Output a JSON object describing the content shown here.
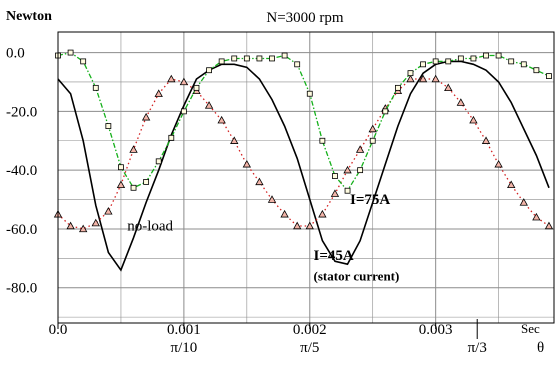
{
  "chart_data": {
    "type": "line",
    "title": "N=3000 rpm",
    "ylabel": "Newton",
    "xlabel_unit": "Sec",
    "angle_label": "θ",
    "xlim": [
      0.0,
      0.00394
    ],
    "ylim": [
      -92,
      7
    ],
    "grid": true,
    "x_ticks": [
      {
        "value": 0.0,
        "label": "0.0"
      },
      {
        "value": 0.001,
        "label": "0.001"
      },
      {
        "value": 0.002,
        "label": "0.002"
      },
      {
        "value": 0.003,
        "label": "0.003"
      }
    ],
    "angle_ticks": [
      {
        "value": 0.001,
        "label": "π/10"
      },
      {
        "value": 0.002,
        "label": "π/5"
      },
      {
        "value": 0.00333,
        "label": "π/3"
      }
    ],
    "y_ticks": [
      {
        "value": 0,
        "label": "0.0"
      },
      {
        "value": -20,
        "label": "-20.0"
      },
      {
        "value": -40,
        "label": "-40.0"
      },
      {
        "value": -60,
        "label": "-60.0"
      },
      {
        "value": -80,
        "label": "-80.0"
      }
    ],
    "series": [
      {
        "name": "no-load",
        "color": "#000000",
        "style": "solid",
        "marker": "none",
        "x": [
          0.0,
          0.0001,
          0.0002,
          0.0003,
          0.0004,
          0.0005,
          0.0006,
          0.0007,
          0.0008,
          0.0009,
          0.001,
          0.0011,
          0.0012,
          0.0013,
          0.0014,
          0.0015,
          0.0016,
          0.0017,
          0.0018,
          0.0019,
          0.002,
          0.0021,
          0.0022,
          0.0023,
          0.0024,
          0.0025,
          0.0026,
          0.0027,
          0.0028,
          0.0029,
          0.003,
          0.0031,
          0.0032,
          0.0033,
          0.0034,
          0.0035,
          0.0036,
          0.0037,
          0.0038,
          0.0039
        ],
        "y": [
          -9,
          -14,
          -30,
          -52,
          -68,
          -74,
          -63,
          -51,
          -40,
          -28,
          -18,
          -9,
          -6,
          -4,
          -4,
          -5,
          -9,
          -16,
          -25,
          -36,
          -50,
          -64,
          -71,
          -72,
          -64,
          -51,
          -38,
          -25,
          -14,
          -7,
          -4,
          -3,
          -3,
          -4,
          -6,
          -10,
          -17,
          -26,
          -35,
          -46
        ]
      },
      {
        "name": "I=75A",
        "color": "#d32020",
        "style": "dotted",
        "marker": "triangle",
        "x": [
          0.0,
          0.0001,
          0.0002,
          0.0003,
          0.0004,
          0.0005,
          0.0006,
          0.0007,
          0.0008,
          0.0009,
          0.001,
          0.0011,
          0.0012,
          0.0013,
          0.0014,
          0.0015,
          0.0016,
          0.0017,
          0.0018,
          0.0019,
          0.002,
          0.0021,
          0.0022,
          0.0023,
          0.0024,
          0.0025,
          0.0026,
          0.0027,
          0.0028,
          0.0029,
          0.003,
          0.0031,
          0.0032,
          0.0033,
          0.0034,
          0.0035,
          0.0036,
          0.0037,
          0.0038,
          0.0039
        ],
        "y": [
          -55,
          -59,
          -60,
          -58,
          -54,
          -45,
          -33,
          -22,
          -14,
          -9,
          -10,
          -13,
          -18,
          -23,
          -30,
          -38,
          -44,
          -50,
          -55,
          -59,
          -59,
          -55,
          -48,
          -40,
          -33,
          -26,
          -19,
          -13,
          -9,
          -9,
          -9,
          -12,
          -17,
          -23,
          -30,
          -38,
          -45,
          -51,
          -56,
          -59
        ]
      },
      {
        "name": "I=45A",
        "color": "#14b01a",
        "style": "dashdot",
        "marker": "square",
        "x": [
          0.0,
          0.0001,
          0.0002,
          0.0003,
          0.0004,
          0.0005,
          0.0006,
          0.0007,
          0.0008,
          0.0009,
          0.001,
          0.0011,
          0.0012,
          0.0013,
          0.0014,
          0.0015,
          0.0016,
          0.0017,
          0.0018,
          0.0019,
          0.002,
          0.0021,
          0.0022,
          0.0023,
          0.0024,
          0.0025,
          0.0026,
          0.0027,
          0.0028,
          0.0029,
          0.003,
          0.0031,
          0.0032,
          0.0033,
          0.0034,
          0.0035,
          0.0036,
          0.0037,
          0.0038,
          0.0039
        ],
        "y": [
          -1,
          0,
          -3,
          -12,
          -25,
          -39,
          -46,
          -44,
          -37,
          -29,
          -20,
          -12,
          -6,
          -3,
          -2,
          -2,
          -2,
          -2,
          -1,
          -4,
          -14,
          -30,
          -42,
          -47,
          -40,
          -30,
          -20,
          -12,
          -7,
          -4,
          -3,
          -3,
          -2,
          -2,
          -1,
          -1,
          -3,
          -4,
          -6,
          -8
        ]
      }
    ],
    "annotations": [
      {
        "text": "no-load",
        "x": 0.00055,
        "y": -60.5,
        "weight": "normal"
      },
      {
        "text": "I=75A",
        "x": 0.00232,
        "y": -51.5,
        "weight": "bold"
      },
      {
        "text": "I=45A",
        "x": 0.00203,
        "y": -70.5,
        "weight": "bold"
      },
      {
        "text": "(stator current)",
        "x": 0.00203,
        "y": -77.5,
        "weight": "bold"
      }
    ]
  }
}
